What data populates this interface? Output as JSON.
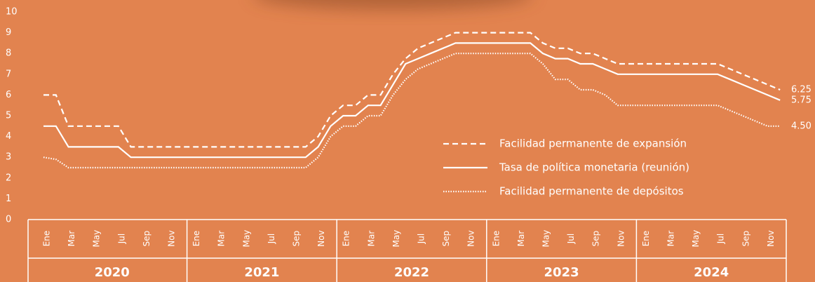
{
  "chart_data": {
    "type": "line",
    "categories": [
      "Ene",
      null,
      "Mar",
      null,
      "May",
      null,
      "Jul",
      null,
      "Sep",
      null,
      "Nov",
      null,
      "Ene",
      null,
      "Mar",
      null,
      "May",
      null,
      "Jul",
      null,
      "Sep",
      null,
      "Nov",
      null,
      "Ene",
      null,
      "Mar",
      null,
      "May",
      null,
      "Jul",
      null,
      "Sep",
      null,
      "Nov",
      null,
      "Ene",
      null,
      "Mar",
      null,
      "May",
      null,
      "Jul",
      null,
      "Sep",
      null,
      "Nov",
      null,
      "Ene",
      null,
      "Mar",
      null,
      "May",
      null,
      "Jul",
      null,
      "Sep",
      null,
      "Nov",
      null
    ],
    "years": [
      "2020",
      "2021",
      "2022",
      "2023",
      "2024"
    ],
    "ylim": [
      0,
      10
    ],
    "yticks": [
      0,
      1,
      2,
      3,
      4,
      5,
      6,
      7,
      8,
      9,
      10
    ],
    "grid": false,
    "series": [
      {
        "name": "Facilidad permanente de expansión",
        "color": "#ffffff",
        "dash": "dashed",
        "values": [
          6,
          6,
          4.5,
          4.5,
          4.5,
          4.5,
          4.5,
          3.5,
          3.5,
          3.5,
          3.5,
          3.5,
          3.5,
          3.5,
          3.5,
          3.5,
          3.5,
          3.5,
          3.5,
          3.5,
          3.5,
          3.5,
          4,
          5,
          5.5,
          5.5,
          6,
          6,
          7,
          7.75,
          8.25,
          8.5,
          8.75,
          9,
          9,
          9,
          9,
          9,
          9,
          9,
          8.5,
          8.25,
          8.25,
          8,
          8,
          7.75,
          7.5,
          7.5,
          7.5,
          7.5,
          7.5,
          7.5,
          7.5,
          7.5,
          7.5,
          7.25,
          7,
          6.75,
          6.5,
          6.25
        ],
        "value_labels": [
          null,
          null,
          null,
          null,
          null,
          null,
          null,
          null,
          null,
          null,
          null,
          null,
          null,
          null,
          null,
          null,
          null,
          null,
          null,
          null,
          null,
          null,
          null,
          null,
          null,
          null,
          null,
          null,
          null,
          null,
          null,
          null,
          null,
          null,
          null,
          null,
          null,
          null,
          null,
          null,
          null,
          null,
          null,
          null,
          null,
          null,
          null,
          null,
          null,
          null,
          null,
          null,
          null,
          null,
          null,
          null,
          null,
          null,
          null,
          "6.25"
        ]
      },
      {
        "name": "Tasa de política monetaria (reunión)",
        "color": "#ffffff",
        "dash": "solid",
        "values": [
          4.5,
          4.5,
          3.5,
          3.5,
          3.5,
          3.5,
          3.5,
          3,
          3,
          3,
          3,
          3,
          3,
          3,
          3,
          3,
          3,
          3,
          3,
          3,
          3,
          3,
          3.5,
          4.5,
          5,
          5,
          5.5,
          5.5,
          6.5,
          7.5,
          7.75,
          8,
          8.25,
          8.5,
          8.5,
          8.5,
          8.5,
          8.5,
          8.5,
          8.5,
          8,
          7.75,
          7.75,
          7.5,
          7.5,
          7.25,
          7,
          7,
          7,
          7,
          7,
          7,
          7,
          7,
          7,
          6.75,
          6.5,
          6.25,
          6,
          5.75
        ],
        "value_labels": [
          null,
          null,
          null,
          null,
          null,
          null,
          null,
          null,
          null,
          null,
          null,
          null,
          null,
          null,
          null,
          null,
          null,
          null,
          null,
          null,
          null,
          null,
          null,
          null,
          null,
          null,
          null,
          null,
          null,
          null,
          null,
          null,
          null,
          null,
          null,
          null,
          null,
          null,
          null,
          null,
          null,
          null,
          null,
          null,
          null,
          null,
          null,
          null,
          null,
          null,
          null,
          null,
          null,
          null,
          null,
          null,
          null,
          null,
          null,
          "5.75"
        ]
      },
      {
        "name": "Facilidad permanente de depósitos",
        "color": "#ffffff",
        "dash": "dotted",
        "values": [
          3,
          2.9,
          2.5,
          2.5,
          2.5,
          2.5,
          2.5,
          2.5,
          2.5,
          2.5,
          2.5,
          2.5,
          2.5,
          2.5,
          2.5,
          2.5,
          2.5,
          2.5,
          2.5,
          2.5,
          2.5,
          2.5,
          3,
          4,
          4.5,
          4.5,
          5,
          5,
          6,
          6.75,
          7.25,
          7.5,
          7.75,
          8,
          8,
          8,
          8,
          8,
          8,
          8,
          7.5,
          6.75,
          6.75,
          6.25,
          6.25,
          6,
          5.5,
          5.5,
          5.5,
          5.5,
          5.5,
          5.5,
          5.5,
          5.5,
          5.5,
          5.25,
          5,
          4.75,
          4.5,
          4.5
        ],
        "value_labels": [
          null,
          null,
          null,
          null,
          null,
          null,
          null,
          null,
          null,
          null,
          null,
          null,
          null,
          null,
          null,
          null,
          null,
          null,
          null,
          null,
          null,
          null,
          null,
          null,
          null,
          null,
          null,
          null,
          null,
          null,
          null,
          null,
          null,
          null,
          null,
          null,
          null,
          null,
          null,
          null,
          null,
          null,
          null,
          null,
          null,
          null,
          null,
          null,
          null,
          null,
          null,
          null,
          null,
          null,
          null,
          null,
          null,
          null,
          null,
          "4.50"
        ]
      }
    ]
  }
}
